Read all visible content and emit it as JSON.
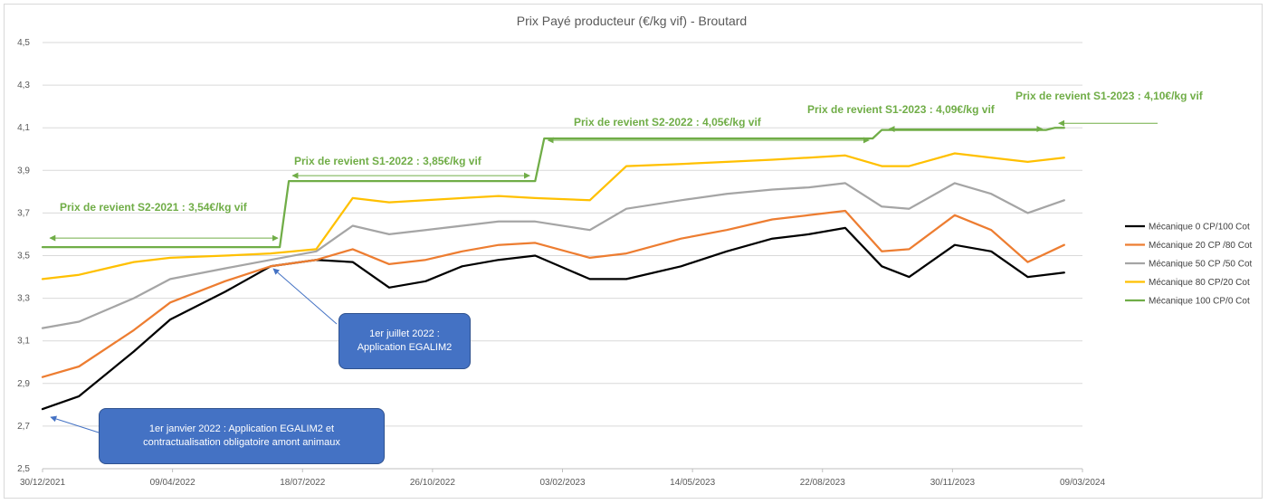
{
  "chart_data": {
    "type": "line",
    "title": "Prix Payé producteur (€/kg vif) - Broutard",
    "xlabel": "",
    "ylabel": "",
    "ylim": [
      2.5,
      4.5
    ],
    "y_ticks": [
      "2,5",
      "2,7",
      "2,9",
      "3,1",
      "3,3",
      "3,5",
      "3,7",
      "3,9",
      "4,1",
      "4,3",
      "4,5"
    ],
    "x_ticks": [
      "30/12/2021",
      "09/04/2022",
      "18/07/2022",
      "26/10/2022",
      "03/02/2023",
      "14/05/2023",
      "22/08/2023",
      "30/11/2023",
      "09/03/2024"
    ],
    "xlim_week_index": [
      0,
      114
    ],
    "grid": true,
    "legend_position": "right",
    "x_week_index": [
      0,
      4,
      10,
      14,
      20,
      25,
      30,
      34,
      38,
      42,
      46,
      50,
      54,
      60,
      64,
      70,
      75,
      80,
      84,
      88,
      92,
      95,
      100,
      104,
      108,
      112
    ],
    "series": [
      {
        "name": "Mécanique 0 CP/100 Cot",
        "color": "#000000",
        "values": [
          2.78,
          2.84,
          3.05,
          3.2,
          3.33,
          3.45,
          3.48,
          3.47,
          3.35,
          3.38,
          3.45,
          3.48,
          3.5,
          3.39,
          3.39,
          3.45,
          3.52,
          3.58,
          3.6,
          3.63,
          3.45,
          3.4,
          3.55,
          3.52,
          3.4,
          3.42
        ]
      },
      {
        "name": "Mécanique 20 CP /80 Cot",
        "color": "#ed7d31",
        "values": [
          2.93,
          2.98,
          3.15,
          3.28,
          3.38,
          3.45,
          3.48,
          3.53,
          3.46,
          3.48,
          3.52,
          3.55,
          3.56,
          3.49,
          3.51,
          3.58,
          3.62,
          3.67,
          3.69,
          3.71,
          3.52,
          3.53,
          3.69,
          3.62,
          3.47,
          3.55
        ]
      },
      {
        "name": "Mécanique 50 CP /50 Cot",
        "color": "#a5a5a5",
        "values": [
          3.16,
          3.19,
          3.3,
          3.39,
          3.44,
          3.48,
          3.52,
          3.64,
          3.6,
          3.62,
          3.64,
          3.66,
          3.66,
          3.62,
          3.72,
          3.76,
          3.79,
          3.81,
          3.82,
          3.84,
          3.73,
          3.72,
          3.84,
          3.79,
          3.7,
          3.76
        ]
      },
      {
        "name": "Mécanique 80 CP/20 Cot",
        "color": "#ffc000",
        "values": [
          3.39,
          3.41,
          3.47,
          3.49,
          3.5,
          3.51,
          3.53,
          3.77,
          3.75,
          3.76,
          3.77,
          3.78,
          3.77,
          3.76,
          3.92,
          3.93,
          3.94,
          3.95,
          3.96,
          3.97,
          3.92,
          3.92,
          3.98,
          3.96,
          3.94,
          3.96
        ]
      },
      {
        "name": "Mécanique 100 CP/0 Cot",
        "color": "#70ad47",
        "step": true,
        "x_week_index": [
          0,
          26,
          27,
          54,
          55,
          91,
          92,
          110,
          111,
          112
        ],
        "values": [
          3.54,
          3.54,
          3.85,
          3.85,
          4.05,
          4.05,
          4.09,
          4.09,
          4.1,
          4.1
        ]
      }
    ],
    "annotations": [
      {
        "id": "s2_2021",
        "text": "Prix de revient S2-2021 :  3,54€/kg vif"
      },
      {
        "id": "s1_2022",
        "text": "Prix de revient S1-2022 :  3,85€/kg vif"
      },
      {
        "id": "s2_2022",
        "text": "Prix de revient S2-2022 :  4,05€/kg vif"
      },
      {
        "id": "s1_2023",
        "text": "Prix de revient S1-2023 :  4,09€/kg vif"
      },
      {
        "id": "s1_2023b",
        "text": "Prix de revient S1-2023 :  4,10€/kg vif"
      }
    ],
    "callouts": [
      {
        "id": "egalim_2022_07",
        "line1": "1er juillet 2022 :",
        "line2": "Application EGALIM2"
      },
      {
        "id": "egalim_2022_01",
        "line1": "1er janvier 2022 : Application EGALIM2 et",
        "line2": "contractualisation obligatoire amont animaux"
      }
    ]
  }
}
